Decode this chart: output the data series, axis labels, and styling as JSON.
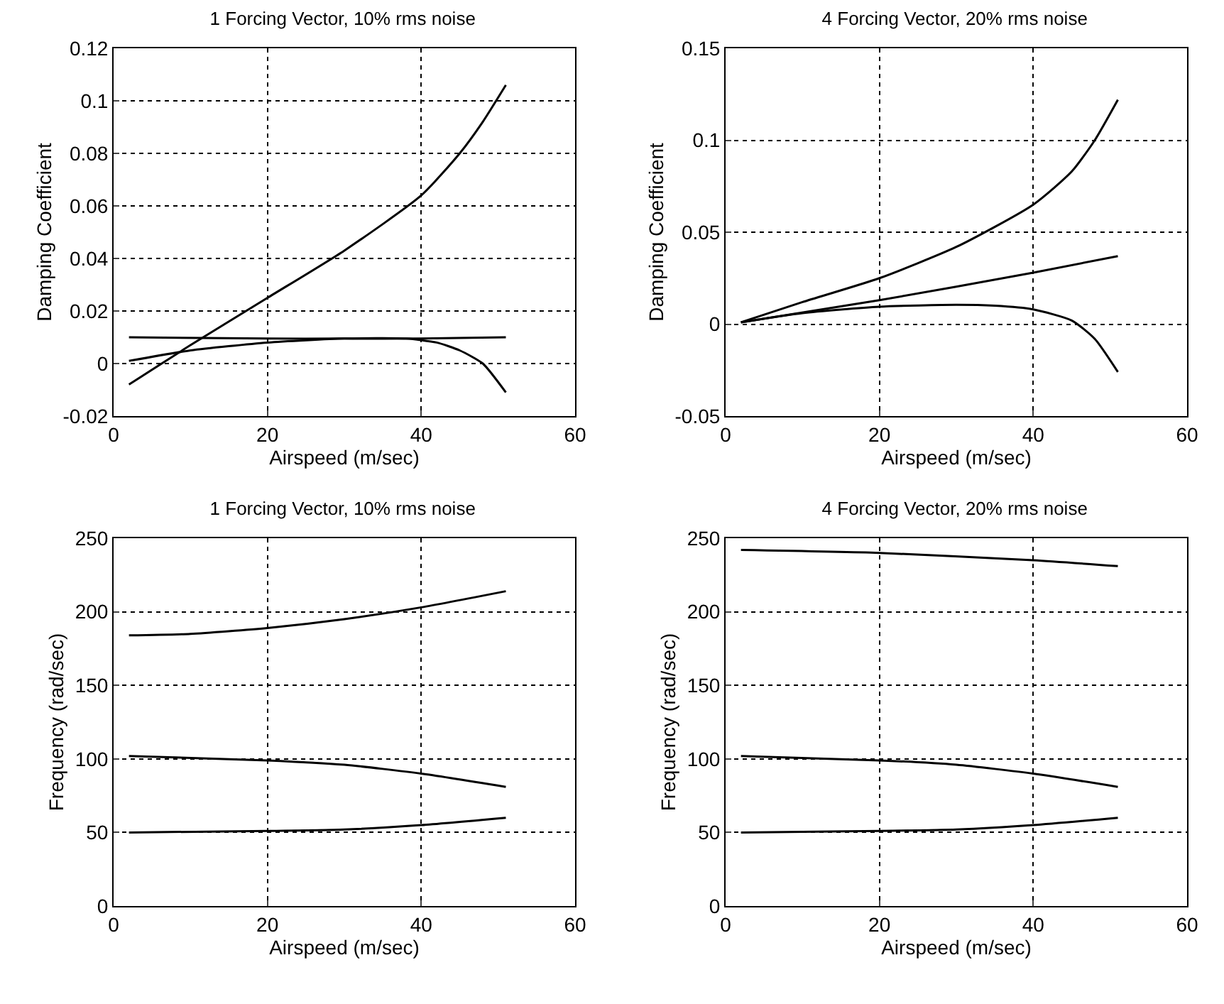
{
  "chart_data": [
    {
      "type": "line",
      "title": "1 Forcing Vector, 10% rms noise",
      "xlabel": "Airspeed (m/sec)",
      "ylabel": "Damping Coefficient",
      "xlim": [
        0,
        60
      ],
      "xticks": [
        0,
        20,
        40,
        60
      ],
      "ylim": [
        -0.02,
        0.12
      ],
      "yticks": [
        -0.02,
        0,
        0.02,
        0.04,
        0.06,
        0.08,
        0.1,
        0.12
      ],
      "grid": true,
      "line_style": "solid",
      "series": [
        {
          "color": "#000000",
          "x": [
            2,
            10,
            20,
            30,
            40,
            45,
            48,
            51
          ],
          "values": [
            -0.008,
            0.007,
            0.025,
            0.043,
            0.064,
            0.08,
            0.092,
            0.106
          ]
        },
        {
          "color": "#000000",
          "x": [
            2,
            20,
            30,
            40,
            51
          ],
          "values": [
            0.01,
            0.0095,
            0.0095,
            0.0095,
            0.01
          ]
        },
        {
          "color": "#000000",
          "x": [
            2,
            10,
            20,
            30,
            38,
            42,
            45,
            48,
            51
          ],
          "values": [
            0.001,
            0.005,
            0.008,
            0.0095,
            0.0095,
            0.008,
            0.005,
            0,
            -0.011
          ]
        }
      ]
    },
    {
      "type": "line",
      "title": "4 Forcing Vector, 20% rms noise",
      "xlabel": "Airspeed (m/sec)",
      "ylabel": "Damping Coefficient",
      "xlim": [
        0,
        60
      ],
      "xticks": [
        0,
        20,
        40,
        60
      ],
      "ylim": [
        -0.05,
        0.15
      ],
      "yticks": [
        -0.05,
        0,
        0.05,
        0.1,
        0.15
      ],
      "grid": true,
      "line_style": "solid",
      "series": [
        {
          "color": "#000000",
          "x": [
            2,
            10,
            20,
            30,
            40,
            45,
            48,
            51
          ],
          "values": [
            0.001,
            0.012,
            0.025,
            0.042,
            0.065,
            0.083,
            0.1,
            0.122
          ]
        },
        {
          "color": "#000000",
          "x": [
            2,
            20,
            40,
            51
          ],
          "values": [
            0.001,
            0.013,
            0.028,
            0.037
          ]
        },
        {
          "color": "#000000",
          "x": [
            2,
            10,
            20,
            30,
            35,
            40,
            45,
            48,
            51
          ],
          "values": [
            0.001,
            0.006,
            0.0095,
            0.0105,
            0.01,
            0.008,
            0.002,
            -0.008,
            -0.026
          ]
        }
      ]
    },
    {
      "type": "line",
      "title": "1 Forcing Vector, 10% rms noise",
      "xlabel": "Airspeed (m/sec)",
      "ylabel": "Frequency (rad/sec)",
      "xlim": [
        0,
        60
      ],
      "xticks": [
        0,
        20,
        40,
        60
      ],
      "ylim": [
        0,
        250
      ],
      "yticks": [
        0,
        50,
        100,
        150,
        200,
        250
      ],
      "grid": true,
      "line_style": "solid",
      "series": [
        {
          "color": "#000000",
          "x": [
            2,
            10,
            20,
            30,
            40,
            51
          ],
          "values": [
            184,
            185,
            189,
            195,
            203,
            214
          ]
        },
        {
          "color": "#000000",
          "x": [
            2,
            20,
            30,
            40,
            51
          ],
          "values": [
            102,
            99,
            96,
            90,
            81
          ]
        },
        {
          "color": "#000000",
          "x": [
            2,
            20,
            30,
            40,
            51
          ],
          "values": [
            50,
            51,
            52,
            55,
            60
          ]
        }
      ]
    },
    {
      "type": "line",
      "title": "4 Forcing Vector, 20% rms noise",
      "xlabel": "Airspeed (m/sec)",
      "ylabel": "Frequency (rad/sec)",
      "xlim": [
        0,
        60
      ],
      "xticks": [
        0,
        20,
        40,
        60
      ],
      "ylim": [
        0,
        250
      ],
      "yticks": [
        0,
        50,
        100,
        150,
        200,
        250
      ],
      "grid": true,
      "line_style": "solid",
      "series": [
        {
          "color": "#000000",
          "x": [
            2,
            20,
            40,
            51
          ],
          "values": [
            242,
            240,
            235,
            231
          ]
        },
        {
          "color": "#000000",
          "x": [
            2,
            20,
            30,
            40,
            51
          ],
          "values": [
            102,
            99,
            96,
            90,
            81
          ]
        },
        {
          "color": "#000000",
          "x": [
            2,
            20,
            30,
            40,
            51
          ],
          "values": [
            50,
            51,
            52,
            55,
            60
          ]
        }
      ]
    }
  ]
}
